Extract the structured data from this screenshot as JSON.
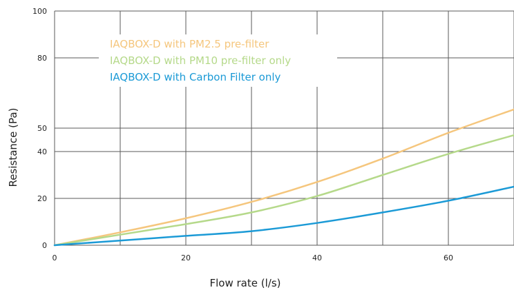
{
  "chart_data": {
    "type": "line",
    "xlabel": "Flow rate (l/s)",
    "ylabel": "Resistance (Pa)",
    "xlim": [
      0,
      70
    ],
    "ylim": [
      0,
      100
    ],
    "x_ticks": [
      0,
      20,
      40,
      60
    ],
    "x_ticks_labels": [
      "0",
      "20",
      "40",
      "60"
    ],
    "y_ticks": [
      0,
      20,
      40,
      50,
      80,
      100
    ],
    "y_ticks_labels": [
      "0",
      "20",
      "40",
      "50",
      "80",
      "100"
    ],
    "grid": true,
    "legend_position": "top-center",
    "series": [
      {
        "name": "IAQBOX-D with PM2.5 pre-filter",
        "color": "#f5c67d",
        "x": [
          0,
          10,
          20,
          30,
          40,
          50,
          60,
          70
        ],
        "y": [
          0,
          5.5,
          11.5,
          18.5,
          27,
          37,
          48,
          58
        ]
      },
      {
        "name": "IAQBOX-D with PM10 pre-filter only",
        "color": "#b5d98a",
        "x": [
          0,
          10,
          20,
          30,
          40,
          50,
          60,
          70
        ],
        "y": [
          0,
          4.5,
          9,
          14,
          21,
          30,
          39,
          47
        ]
      },
      {
        "name": "IAQBOX-D with Carbon Filter only",
        "color": "#1b9ad6",
        "x": [
          0,
          10,
          20,
          30,
          40,
          50,
          60,
          70
        ],
        "y": [
          0,
          2,
          4,
          6,
          9.5,
          14,
          19,
          25
        ]
      }
    ]
  }
}
